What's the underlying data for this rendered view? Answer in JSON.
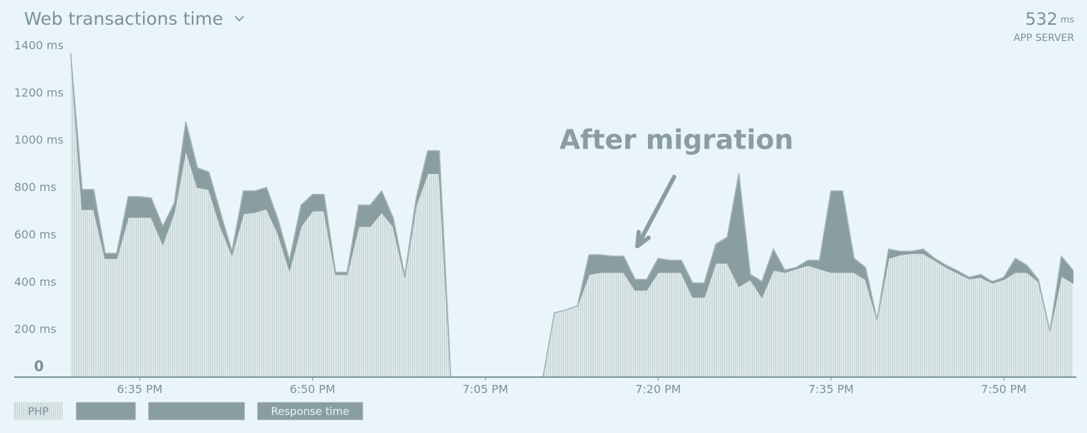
{
  "chart_data": {
    "type": "stacked_area",
    "title": "Web transactions time",
    "summary": {
      "value": 532,
      "unit": "ms",
      "label": "APP SERVER"
    },
    "annotation": "After migration",
    "x": [
      29,
      30,
      31,
      32,
      33,
      34,
      35,
      36,
      37,
      38,
      39,
      40,
      41,
      42,
      43,
      44,
      45,
      46,
      47,
      48,
      49,
      50,
      51,
      52,
      53,
      54,
      55,
      56,
      57,
      58,
      59,
      60,
      61,
      62,
      63,
      64,
      65,
      66,
      67,
      68,
      69,
      70,
      71,
      72,
      73,
      74,
      75,
      76,
      77,
      78,
      79,
      80,
      81,
      82,
      83,
      84,
      85,
      86,
      87,
      88,
      89,
      90,
      91,
      92,
      93,
      94,
      95,
      96,
      97,
      98,
      99,
      100,
      101,
      102,
      103,
      104,
      105,
      106,
      107,
      108,
      109,
      110,
      111,
      112,
      113,
      114,
      115,
      116
    ],
    "xlim": [
      24.1,
      116.3
    ],
    "xticks": [
      {
        "value": 35,
        "label": "6:35 PM"
      },
      {
        "value": 50,
        "label": "6:50 PM"
      },
      {
        "value": 65,
        "label": "7:05 PM"
      },
      {
        "value": 80,
        "label": "7:20 PM"
      },
      {
        "value": 95,
        "label": "7:35 PM"
      },
      {
        "value": 110,
        "label": "7:50 PM"
      }
    ],
    "ylim": [
      0,
      1400
    ],
    "yticks": [
      0,
      {
        "value": 200,
        "label": "200 ms"
      },
      {
        "value": 400,
        "label": "400 ms"
      },
      {
        "value": 600,
        "label": "600 ms"
      },
      {
        "value": 800,
        "label": "800 ms"
      },
      {
        "value": 1000,
        "label": "1000 ms"
      },
      {
        "value": 1200,
        "label": "1200 ms"
      },
      {
        "value": 1400,
        "label": "1400 ms"
      }
    ],
    "grid": false,
    "series": [
      {
        "name": "PHP",
        "color": "#d3e0e2",
        "values": [
          1370,
          709,
          709,
          502,
          502,
          676,
          676,
          676,
          562,
          697,
          960,
          802,
          793,
          637,
          517,
          691,
          697,
          712,
          607,
          452,
          637,
          703,
          703,
          434,
          434,
          637,
          637,
          697,
          637,
          422,
          727,
          861,
          861,
          0,
          0,
          0,
          0,
          0,
          0,
          0,
          0,
          0,
          272,
          284,
          302,
          434,
          443,
          443,
          443,
          368,
          368,
          443,
          443,
          443,
          338,
          338,
          482,
          482,
          383,
          413,
          338,
          452,
          443,
          458,
          473,
          458,
          443,
          443,
          443,
          413,
          242,
          502,
          517,
          523,
          523,
          494,
          464,
          440,
          416,
          422,
          398,
          413,
          443,
          443,
          404,
          194,
          428,
          398
        ]
      },
      {
        "color": "#8a9ea0",
        "values": [
          0,
          84,
          84,
          21,
          21,
          87,
          87,
          81,
          75,
          39,
          120,
          83,
          74,
          60,
          15,
          96,
          90,
          90,
          60,
          42,
          90,
          69,
          69,
          9,
          9,
          90,
          90,
          90,
          36,
          6,
          30,
          96,
          96,
          0,
          0,
          0,
          0,
          0,
          0,
          0,
          0,
          0,
          0,
          0,
          0,
          83,
          74,
          68,
          68,
          45,
          45,
          59,
          51,
          51,
          60,
          60,
          80,
          110,
          478,
          21,
          66,
          89,
          9,
          6,
          21,
          36,
          344,
          344,
          59,
          51,
          0,
          39,
          15,
          9,
          18,
          8,
          9,
          9,
          6,
          12,
          6,
          9,
          59,
          30,
          9,
          0,
          83,
          54
        ]
      }
    ],
    "legend": [
      {
        "label": "PHP",
        "color": "#d3e0e2"
      },
      {
        "color": "#8a9ea0"
      },
      {
        "color": "#8a9ea0"
      },
      {
        "label": "Response time",
        "color": "#8a9ea0"
      }
    ]
  }
}
